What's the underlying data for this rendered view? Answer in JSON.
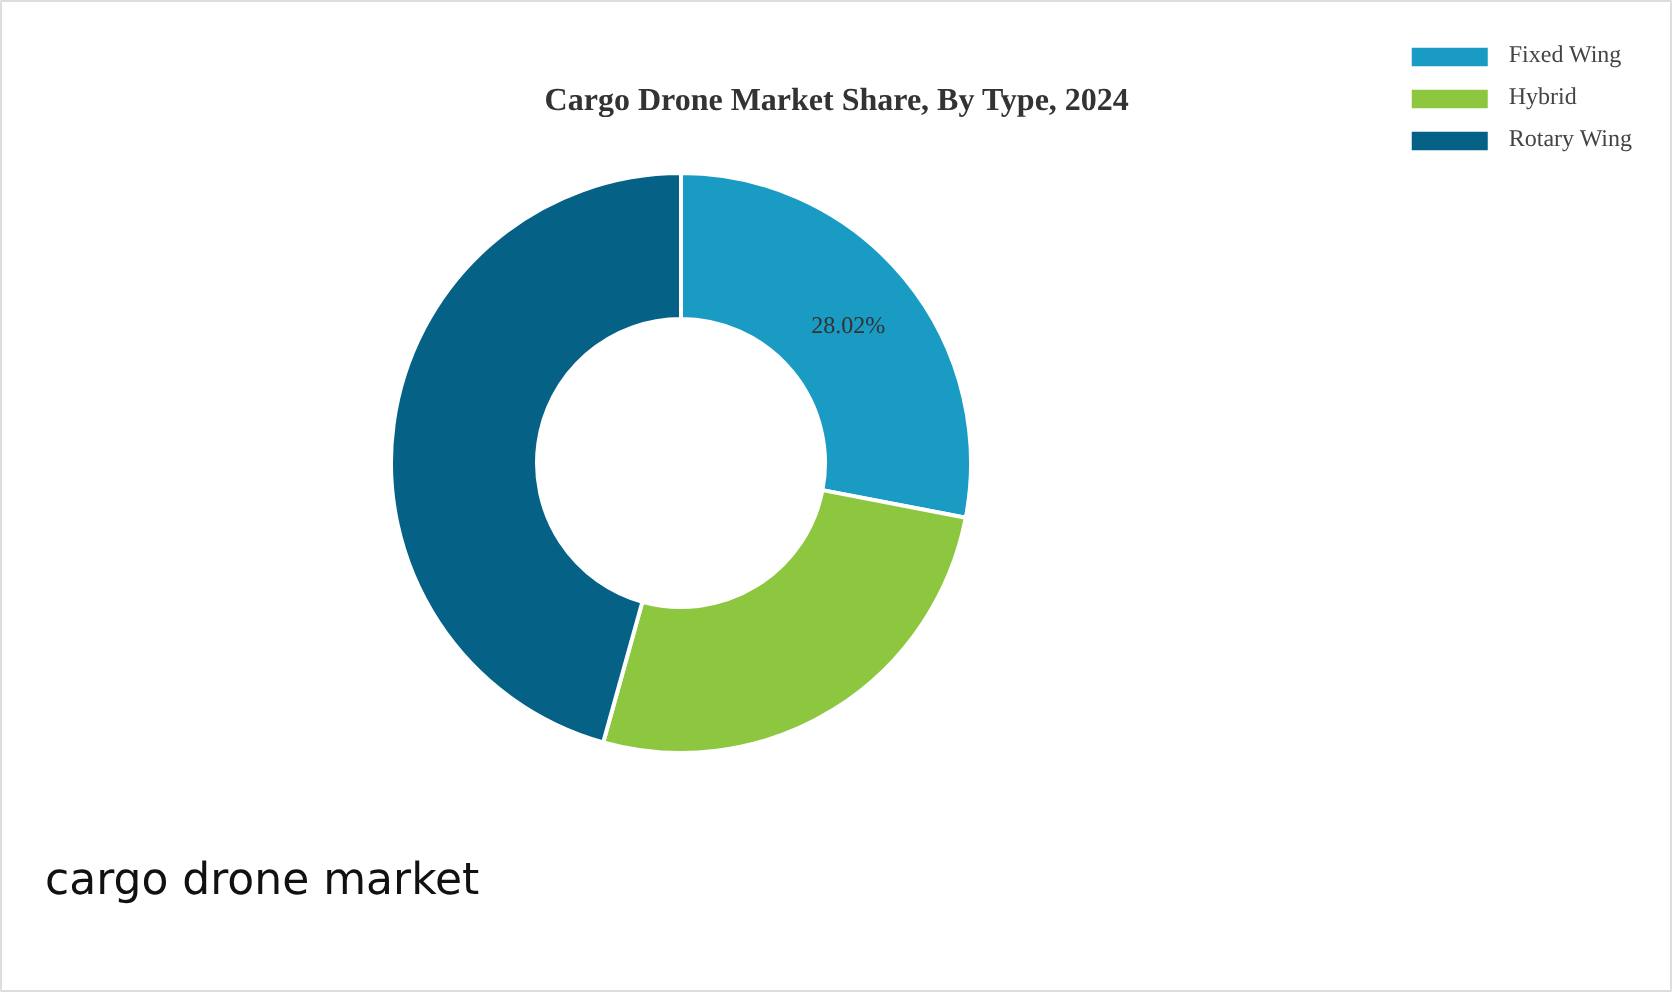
{
  "chart_data": {
    "type": "donut",
    "title": "Cargo Drone Market Share, By Type, 2024",
    "categories": [
      "Fixed Wing",
      "Hybrid",
      "Rotary Wing"
    ],
    "values": [
      28.02,
      26.3,
      45.68
    ],
    "colors": [
      "#1a9bc4",
      "#8dc63f",
      "#066186"
    ],
    "value_labels": [
      "28.02%",
      null,
      null
    ],
    "legend": "top right",
    "annotations": [
      "cargo drone market"
    ]
  }
}
